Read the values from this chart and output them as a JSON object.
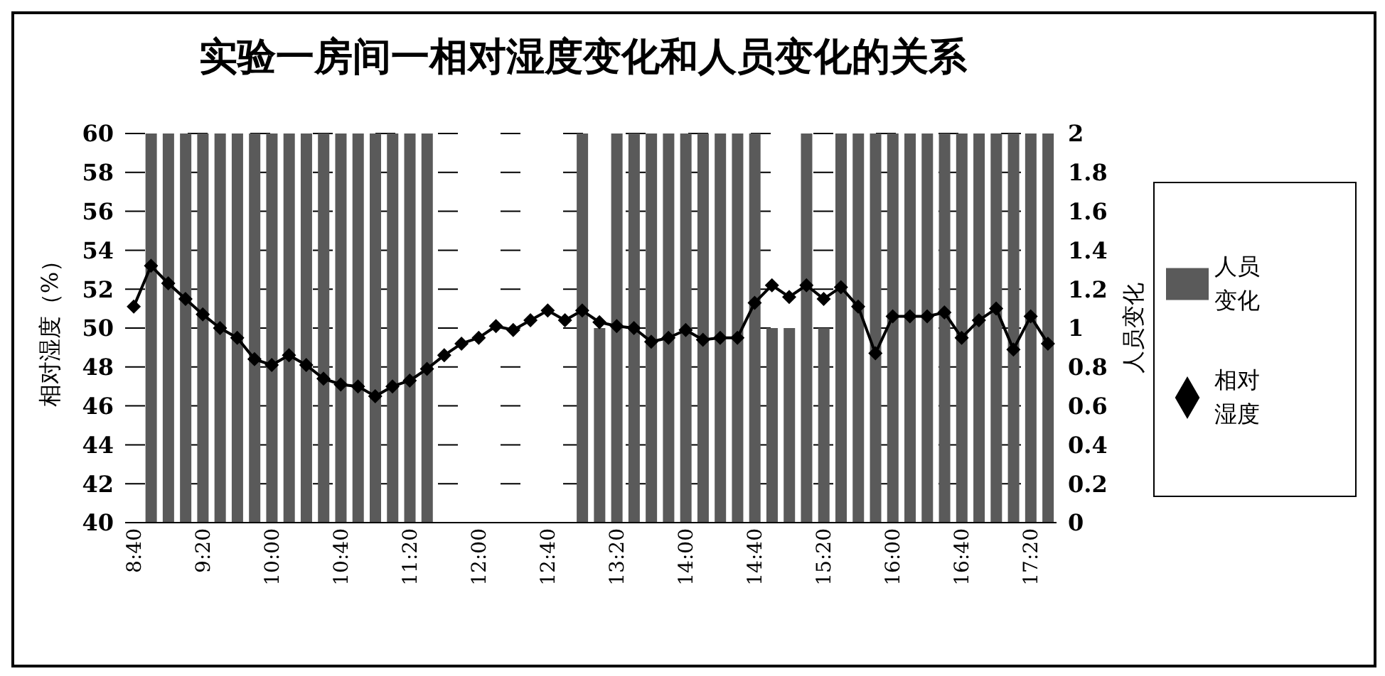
{
  "chart_data": {
    "type": "bar",
    "title": "实验一房间一相对湿度变化和人员变化的关系",
    "categories": [
      "8:40",
      null,
      null,
      null,
      "9:20",
      null,
      null,
      null,
      "10:00",
      null,
      null,
      null,
      "10:40",
      null,
      null,
      null,
      "11:20",
      null,
      null,
      null,
      "12:00",
      null,
      null,
      null,
      "12:40",
      null,
      null,
      null,
      "13:20",
      null,
      null,
      null,
      "14:00",
      null,
      null,
      null,
      "14:40",
      null,
      null,
      null,
      "15:20",
      null,
      null,
      null,
      "16:00",
      null,
      null,
      null,
      "16:40",
      null,
      null,
      null,
      "17:20",
      null
    ],
    "series": [
      {
        "name": "人员变化",
        "axis": "y2",
        "color": "#5a5a5a",
        "values": [
          0,
          2,
          2,
          2,
          2,
          2,
          2,
          2,
          2,
          2,
          2,
          2,
          2,
          2,
          2,
          2,
          2,
          2,
          0,
          0,
          0,
          0,
          0,
          0,
          0,
          0,
          2,
          1,
          2,
          2,
          2,
          2,
          2,
          2,
          2,
          2,
          2,
          1,
          1,
          2,
          1,
          2,
          2,
          2,
          2,
          2,
          2,
          2,
          2,
          2,
          2,
          2,
          2,
          2
        ]
      },
      {
        "name": "相对湿度",
        "type": "line",
        "color": "#000000",
        "marker": "diamond",
        "values": [
          51.1,
          53.2,
          52.3,
          51.5,
          50.7,
          50.0,
          49.5,
          48.4,
          48.1,
          48.6,
          48.1,
          47.4,
          47.1,
          47.0,
          46.5,
          47.0,
          47.3,
          47.9,
          48.6,
          49.2,
          49.5,
          50.1,
          49.9,
          50.4,
          50.9,
          50.4,
          50.9,
          50.3,
          50.1,
          50.0,
          49.3,
          49.5,
          49.9,
          49.4,
          49.5,
          49.5,
          51.3,
          52.2,
          51.6,
          52.2,
          51.5,
          52.1,
          51.1,
          48.7,
          50.6,
          50.6,
          50.6,
          50.8,
          49.5,
          50.4,
          51.0,
          48.9,
          50.6,
          49.2
        ]
      }
    ],
    "ylabel": "相对湿度（%）",
    "y2label": "人员变化",
    "ylim": [
      40,
      60
    ],
    "yticks": [
      40,
      42,
      44,
      46,
      48,
      50,
      52,
      54,
      56,
      58,
      60
    ],
    "y2lim": [
      0,
      2
    ],
    "y2ticks": [
      0,
      0.2,
      0.4,
      0.6,
      0.8,
      1,
      1.2,
      1.4,
      1.6,
      1.8,
      2
    ],
    "grid": "y",
    "legend": "right"
  }
}
